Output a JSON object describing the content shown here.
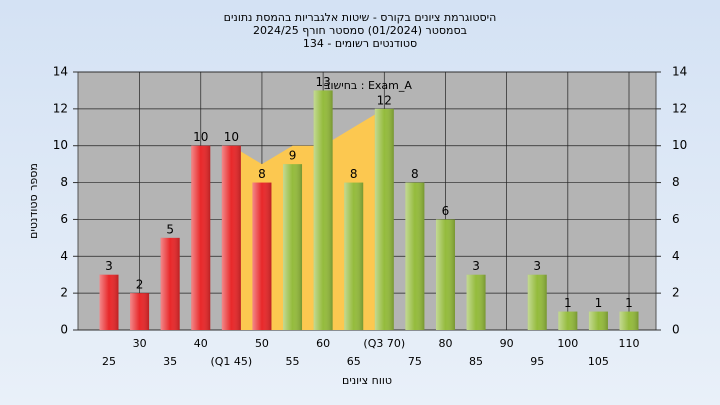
{
  "chart_data": {
    "type": "bar",
    "title": "היסטוגרמת ציונים בקורס - שיטות אלגבריות בהמסת נתונים",
    "subtitle": "בסמסטר  (01/2024)  סמסטר חורף 2024/25",
    "subtitle2": "134 - סטודנטים רשומים",
    "annotation": "בחישוב : Exam_A",
    "x_label": "טווח ציונים",
    "y_label": "מספר סטודנטים",
    "categories": [
      "25",
      "30",
      "35",
      "40",
      "(Q1 45)",
      "50",
      "55",
      "60",
      "65",
      "(Q3 70)",
      "75",
      "80",
      "85",
      "90",
      "95",
      "100",
      "105",
      "110"
    ],
    "values": [
      3,
      2,
      5,
      10,
      10,
      8,
      9,
      13,
      8,
      12,
      8,
      6,
      3,
      null,
      3,
      1,
      1,
      1
    ],
    "colors": [
      "#e8282a",
      "#e8282a",
      "#e8282a",
      "#e8282a",
      "#e8282a",
      "#e8282a",
      "#94bb3c",
      "#94bb3c",
      "#94bb3c",
      "#94bb3c",
      "#94bb3c",
      "#94bb3c",
      "#94bb3c",
      "#94bb3c",
      "#94bb3c",
      "#94bb3c",
      "#94bb3c",
      "#94bb3c"
    ],
    "area": {
      "color": "#fcc850",
      "values": [
        null,
        null,
        null,
        null,
        10,
        9,
        10,
        10,
        11,
        12,
        null,
        null,
        null,
        null,
        null,
        null,
        null,
        null
      ]
    },
    "ylim": [
      0,
      14
    ],
    "yticks": [
      0,
      2,
      4,
      6,
      8,
      10,
      12,
      14
    ],
    "y2lim": [
      0,
      14
    ],
    "y2ticks": [
      0,
      2,
      4,
      6,
      8,
      10,
      12,
      14
    ],
    "grid": true
  }
}
